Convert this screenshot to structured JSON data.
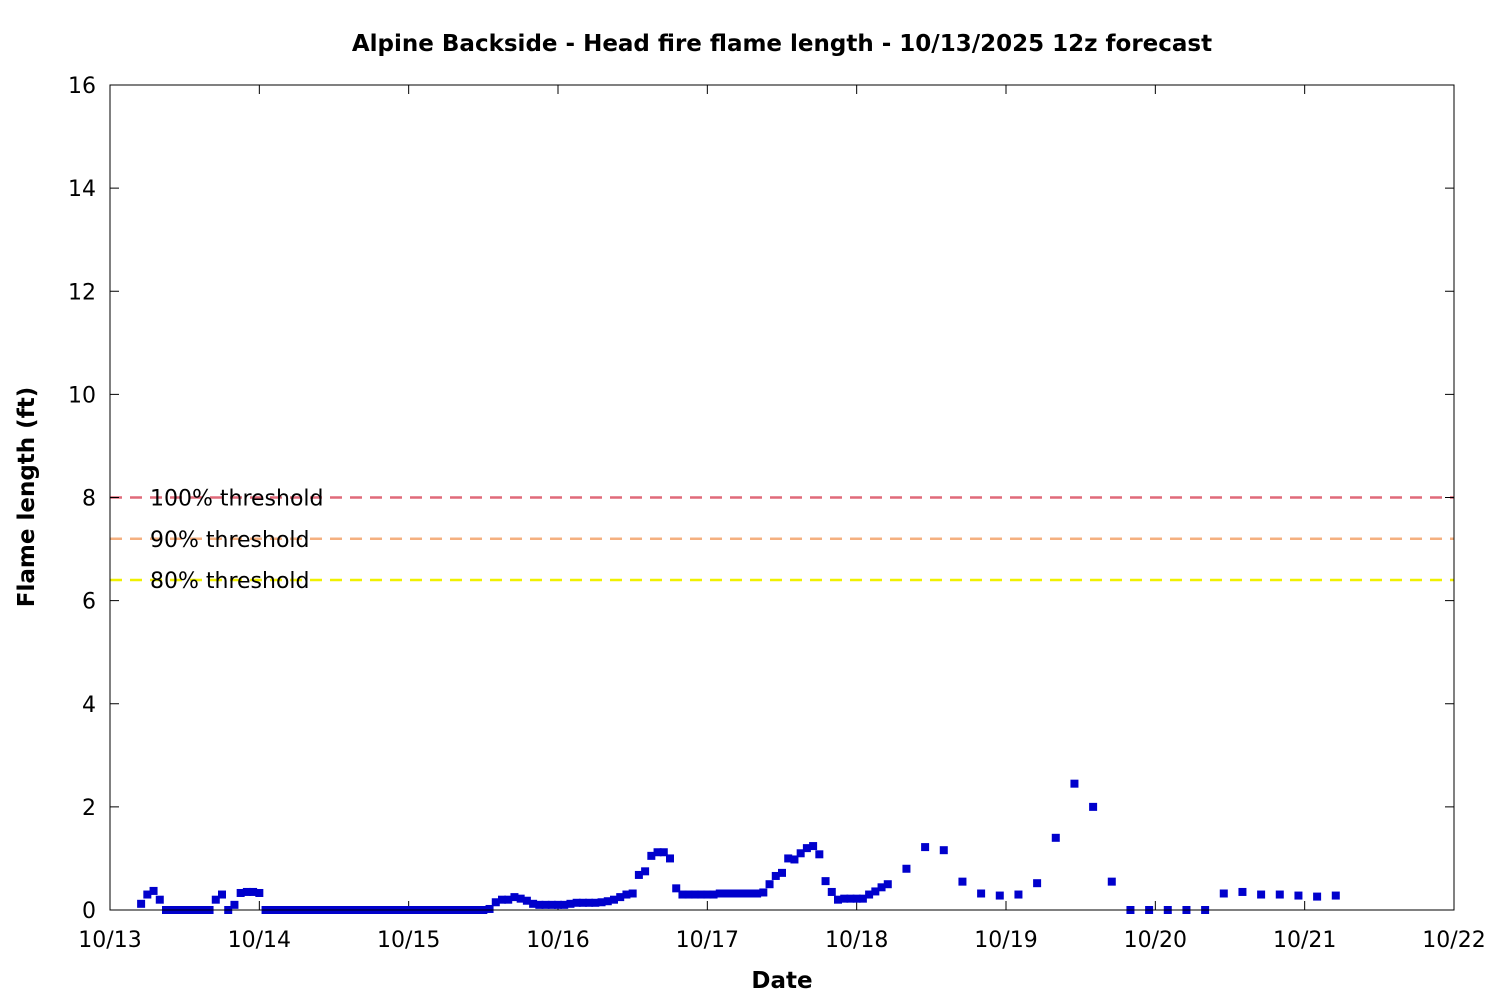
{
  "chart_data": {
    "type": "scatter",
    "title": "Alpine Backside - Head fire flame length - 10/13/2025 12z forecast",
    "xlabel": "Date",
    "ylabel": "Flame length (ft)",
    "xlim": [
      "10/13 00:00",
      "10/22 00:00"
    ],
    "ylim": [
      0,
      16
    ],
    "grid": false,
    "x_ticks": [
      "10/13",
      "10/14",
      "10/15",
      "10/16",
      "10/17",
      "10/18",
      "10/19",
      "10/20",
      "10/21",
      "10/22"
    ],
    "y_ticks": [
      "0",
      "2",
      "4",
      "6",
      "8",
      "10",
      "12",
      "14",
      "16"
    ],
    "colors": {
      "points": "#0000cc",
      "threshold_100": "#e06a7a",
      "threshold_90": "#f5b080",
      "threshold_80": "#f0f000"
    },
    "thresholds": [
      {
        "label": "100% threshold",
        "value": 8.0,
        "color": "#e06a7a"
      },
      {
        "label": "90% threshold",
        "value": 7.2,
        "color": "#f5b080"
      },
      {
        "label": "80% threshold",
        "value": 6.4,
        "color": "#f0f000"
      }
    ],
    "series": [
      {
        "x": [
          "10/13 05:00",
          "10/13 06:00",
          "10/13 07:00",
          "10/13 08:00",
          "10/13 09:00",
          "10/13 10:00",
          "10/13 11:00",
          "10/13 12:00",
          "10/13 13:00",
          "10/13 14:00",
          "10/13 15:00",
          "10/13 16:00",
          "10/13 17:00",
          "10/13 18:00",
          "10/13 19:00",
          "10/13 20:00",
          "10/13 21:00",
          "10/13 22:00",
          "10/13 23:00",
          "10/14 00:00",
          "10/14 01:00",
          "10/14 02:00",
          "10/14 03:00",
          "10/14 04:00",
          "10/14 05:00",
          "10/14 06:00",
          "10/14 07:00",
          "10/14 08:00",
          "10/14 09:00",
          "10/14 10:00",
          "10/14 11:00",
          "10/14 12:00",
          "10/14 13:00",
          "10/14 14:00",
          "10/14 15:00",
          "10/14 16:00",
          "10/14 17:00",
          "10/14 18:00",
          "10/14 19:00",
          "10/14 20:00",
          "10/14 21:00",
          "10/14 22:00",
          "10/14 23:00",
          "10/15 00:00",
          "10/15 01:00",
          "10/15 02:00",
          "10/15 03:00",
          "10/15 04:00",
          "10/15 05:00",
          "10/15 06:00",
          "10/15 07:00",
          "10/15 08:00",
          "10/15 09:00",
          "10/15 10:00",
          "10/15 11:00",
          "10/15 12:00",
          "10/15 13:00",
          "10/15 14:00",
          "10/15 15:00",
          "10/15 16:00",
          "10/15 17:00",
          "10/15 18:00",
          "10/15 19:00",
          "10/15 20:00",
          "10/15 21:00",
          "10/15 22:00",
          "10/15 23:00",
          "10/16 00:00",
          "10/16 01:00",
          "10/16 02:00",
          "10/16 03:00",
          "10/16 04:00",
          "10/16 05:00",
          "10/16 06:00",
          "10/16 07:00",
          "10/16 08:00",
          "10/16 09:00",
          "10/16 10:00",
          "10/16 11:00",
          "10/16 12:00",
          "10/16 13:00",
          "10/16 14:00",
          "10/16 15:00",
          "10/16 16:00",
          "10/16 17:00",
          "10/16 18:00",
          "10/16 19:00",
          "10/16 20:00",
          "10/16 21:00",
          "10/16 22:00",
          "10/16 23:00",
          "10/17 00:00",
          "10/17 01:00",
          "10/17 02:00",
          "10/17 03:00",
          "10/17 04:00",
          "10/17 05:00",
          "10/17 06:00",
          "10/17 07:00",
          "10/17 08:00",
          "10/17 09:00",
          "10/17 10:00",
          "10/17 11:00",
          "10/17 12:00",
          "10/17 13:00",
          "10/17 14:00",
          "10/17 15:00",
          "10/17 16:00",
          "10/17 17:00",
          "10/17 18:00",
          "10/17 19:00",
          "10/17 20:00",
          "10/17 21:00",
          "10/17 22:00",
          "10/17 23:00",
          "10/18 00:00",
          "10/18 01:00",
          "10/18 02:00",
          "10/18 03:00",
          "10/18 04:00",
          "10/18 05:00",
          "10/18 08:00",
          "10/18 11:00",
          "10/18 14:00",
          "10/18 17:00",
          "10/18 20:00",
          "10/18 23:00",
          "10/19 02:00",
          "10/19 05:00",
          "10/19 08:00",
          "10/19 11:00",
          "10/19 14:00",
          "10/19 17:00",
          "10/19 20:00",
          "10/19 23:00",
          "10/20 02:00",
          "10/20 05:00",
          "10/20 08:00",
          "10/20 11:00",
          "10/20 14:00",
          "10/20 17:00",
          "10/20 20:00",
          "10/20 23:00",
          "10/21 02:00",
          "10/21 05:00"
        ],
        "y": [
          0.12,
          0.3,
          0.37,
          0.2,
          0,
          0,
          0,
          0,
          0,
          0,
          0,
          0,
          0.2,
          0.3,
          0,
          0.1,
          0.33,
          0.35,
          0.35,
          0.33,
          0,
          0,
          0,
          0,
          0,
          0,
          0,
          0,
          0,
          0,
          0,
          0,
          0,
          0,
          0,
          0,
          0,
          0,
          0,
          0,
          0,
          0,
          0,
          0,
          0,
          0,
          0,
          0,
          0,
          0,
          0,
          0,
          0,
          0,
          0,
          0,
          0.02,
          0.15,
          0.2,
          0.2,
          0.25,
          0.22,
          0.18,
          0.12,
          0.1,
          0.1,
          0.1,
          0.1,
          0.1,
          0.12,
          0.14,
          0.14,
          0.14,
          0.14,
          0.15,
          0.17,
          0.2,
          0.25,
          0.3,
          0.32,
          0.68,
          0.75,
          1.05,
          1.12,
          1.12,
          1.0,
          0.42,
          0.3,
          0.3,
          0.3,
          0.3,
          0.3,
          0.3,
          0.32,
          0.32,
          0.32,
          0.32,
          0.32,
          0.32,
          0.32,
          0.34,
          0.5,
          0.66,
          0.72,
          1.0,
          0.98,
          1.1,
          1.2,
          1.24,
          1.08,
          0.56,
          0.35,
          0.2,
          0.22,
          0.22,
          0.22,
          0.22,
          0.3,
          0.36,
          0.44,
          0.5,
          0.8,
          1.22,
          1.16,
          0.55,
          0.32,
          0.28,
          0.3,
          0.52,
          1.4,
          2.45,
          2.0,
          0.55,
          0,
          0,
          0,
          0,
          0,
          0.32,
          0.35,
          0.3,
          0.3,
          0.28,
          0.26,
          0.28
        ]
      }
    ]
  }
}
